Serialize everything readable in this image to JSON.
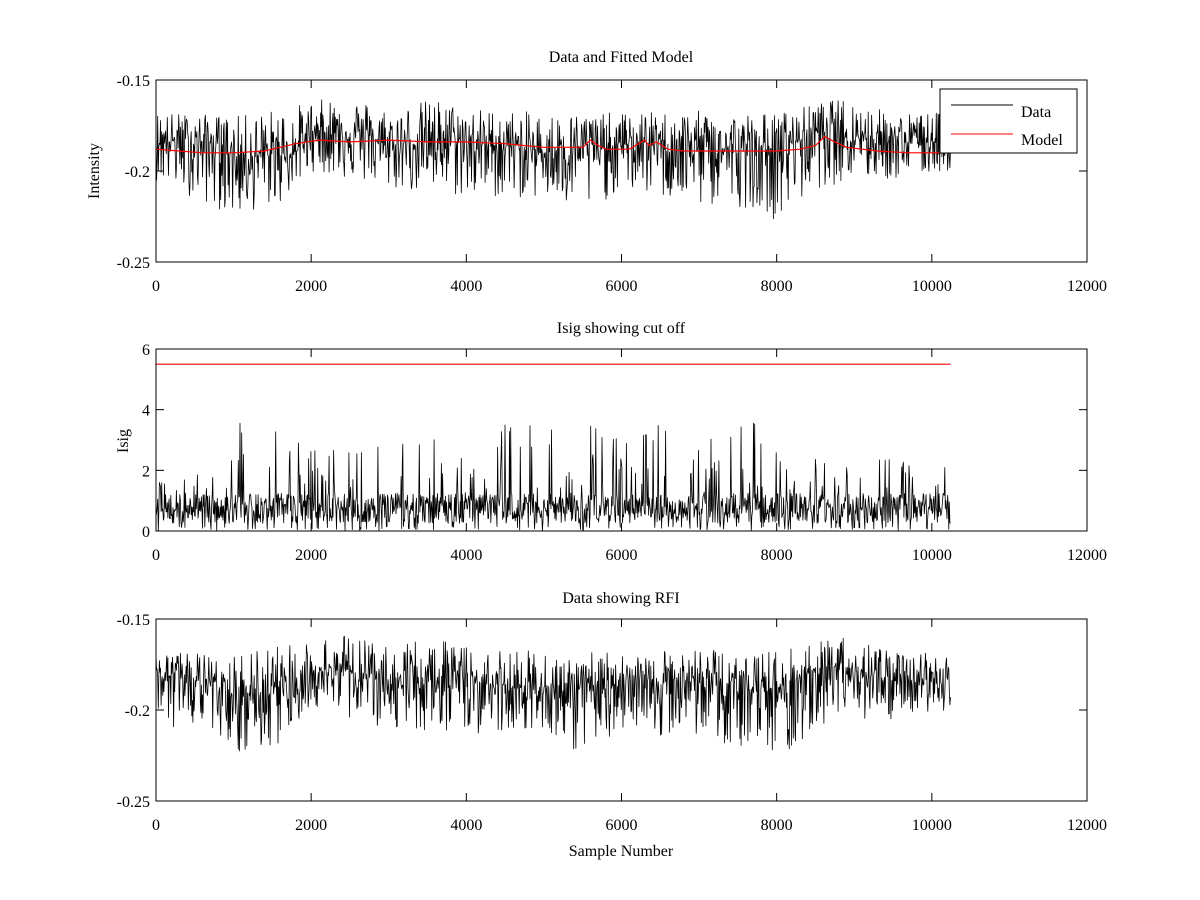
{
  "chart_data": [
    {
      "id": "top",
      "type": "line",
      "title": "Data and Fitted Model",
      "xlabel": "",
      "ylabel": "Intensity",
      "xlim": [
        0,
        12000
      ],
      "ylim": [
        -0.25,
        -0.15
      ],
      "y_reversed": true,
      "xticks": [
        "0",
        "2000",
        "4000",
        "6000",
        "8000",
        "10000",
        "12000"
      ],
      "yticks": [
        "-0.15",
        "-0.2",
        "-0.25"
      ],
      "legend": {
        "position": "top-right",
        "entries": [
          "Data",
          "Model"
        ]
      },
      "series": [
        {
          "name": "Data",
          "color": "#000000",
          "style": "noise",
          "x_range": [
            0,
            10240
          ],
          "center": {
            "x": [
              0,
              900,
              1000,
              1800,
              2000,
              2800,
              2900,
              3700,
              3800,
              4000,
              4500,
              5000,
              5600,
              5700,
              6300,
              6400,
              7000,
              7500,
              8000,
              8500,
              8700,
              9000,
              9500,
              10240
            ],
            "y": [
              -0.183,
              -0.185,
              -0.193,
              -0.19,
              -0.178,
              -0.18,
              -0.188,
              -0.182,
              -0.183,
              -0.185,
              -0.186,
              -0.19,
              -0.185,
              -0.188,
              -0.184,
              -0.186,
              -0.185,
              -0.19,
              -0.188,
              -0.178,
              -0.176,
              -0.18,
              -0.184,
              -0.183
            ]
          },
          "envelope_upper": {
            "x": [
              0,
              1000,
              2000,
              2400,
              3000,
              3600,
              4000,
              5000,
              5500,
              6000,
              7000,
              8000,
              8600,
              8900,
              9500,
              10240
            ],
            "y": [
              -0.167,
              -0.17,
              -0.162,
              -0.158,
              -0.165,
              -0.16,
              -0.165,
              -0.168,
              -0.168,
              -0.168,
              -0.167,
              -0.168,
              -0.162,
              -0.16,
              -0.168,
              -0.168
            ]
          },
          "envelope_lower": {
            "x": [
              0,
              1000,
              1600,
              2000,
              3000,
              4000,
              5000,
              5500,
              6000,
              7000,
              7800,
              8000,
              8500,
              9000,
              9500,
              10240
            ],
            "y": [
              -0.205,
              -0.225,
              -0.218,
              -0.2,
              -0.21,
              -0.215,
              -0.215,
              -0.225,
              -0.21,
              -0.22,
              -0.22,
              -0.228,
              -0.21,
              -0.205,
              -0.205,
              -0.2
            ]
          }
        },
        {
          "name": "Model",
          "color": "#ff0000",
          "style": "line",
          "x": [
            0,
            300,
            600,
            1000,
            1400,
            1800,
            2100,
            2500,
            3000,
            3500,
            4000,
            4500,
            5000,
            5500,
            5600,
            5700,
            5800,
            6100,
            6300,
            6350,
            6450,
            6600,
            6800,
            7200,
            7600,
            8000,
            8300,
            8500,
            8620,
            8700,
            8900,
            9300,
            9700,
            10240
          ],
          "y": [
            -0.188,
            -0.189,
            -0.19,
            -0.19,
            -0.189,
            -0.185,
            -0.183,
            -0.184,
            -0.183,
            -0.184,
            -0.184,
            -0.185,
            -0.187,
            -0.187,
            -0.183,
            -0.186,
            -0.188,
            -0.188,
            -0.183,
            -0.186,
            -0.184,
            -0.188,
            -0.189,
            -0.189,
            -0.189,
            -0.189,
            -0.188,
            -0.186,
            -0.181,
            -0.183,
            -0.187,
            -0.189,
            -0.19,
            -0.19
          ]
        }
      ]
    },
    {
      "id": "middle",
      "type": "line",
      "title": "Isig showing cut off",
      "xlabel": "",
      "ylabel": "Isig",
      "xlim": [
        0,
        12000
      ],
      "ylim": [
        0,
        6
      ],
      "xticks": [
        "0",
        "2000",
        "4000",
        "6000",
        "8000",
        "10000",
        "12000"
      ],
      "yticks": [
        "0",
        "2",
        "4",
        "6"
      ],
      "series": [
        {
          "name": "",
          "color": "#000000",
          "style": "noise",
          "x_range": [
            0,
            10240
          ],
          "center": {
            "x": [
              0,
              10240
            ],
            "y": [
              0.7,
              0.7
            ]
          },
          "envelope_upper": {
            "x": [
              0,
              900,
              1000,
              1700,
              2000,
              3000,
              3800,
              4500,
              5000,
              5500,
              6000,
              6400,
              7000,
              7600,
              7900,
              8100,
              9000,
              9500,
              10240
            ],
            "y": [
              1.8,
              2.0,
              3.8,
              3.5,
              2.8,
              2.8,
              3.2,
              3.6,
              3.5,
              4.1,
              3.2,
              3.7,
              2.8,
              3.8,
              4.1,
              2.5,
              2.4,
              2.5,
              2.3
            ]
          },
          "envelope_lower": {
            "x": [
              0,
              10240
            ],
            "y": [
              0,
              0
            ]
          }
        },
        {
          "name": "",
          "color": "#ff0000",
          "style": "line",
          "x": [
            0,
            10240
          ],
          "y": [
            5.5,
            5.5
          ]
        }
      ]
    },
    {
      "id": "bottom",
      "type": "line",
      "title": "Data showing RFI",
      "xlabel": "Sample Number",
      "ylabel": "",
      "xlim": [
        0,
        12000
      ],
      "ylim": [
        -0.25,
        -0.15
      ],
      "y_reversed": true,
      "xticks": [
        "0",
        "2000",
        "4000",
        "6000",
        "8000",
        "10000",
        "12000"
      ],
      "yticks": [
        "-0.15",
        "-0.2",
        "-0.25"
      ],
      "series": [
        {
          "name": "",
          "color": "#000000",
          "style": "noise",
          "x_range": [
            0,
            10240
          ],
          "center": {
            "x": [
              0,
              900,
              1000,
              1800,
              2000,
              2800,
              2900,
              3700,
              3800,
              4000,
              4500,
              5000,
              5600,
              5700,
              6300,
              6400,
              7000,
              7500,
              8000,
              8500,
              8700,
              9000,
              9500,
              10240
            ],
            "y": [
              -0.183,
              -0.185,
              -0.193,
              -0.19,
              -0.178,
              -0.18,
              -0.188,
              -0.182,
              -0.183,
              -0.185,
              -0.186,
              -0.19,
              -0.185,
              -0.188,
              -0.184,
              -0.186,
              -0.185,
              -0.19,
              -0.188,
              -0.178,
              -0.176,
              -0.18,
              -0.184,
              -0.183
            ]
          },
          "envelope_upper": {
            "x": [
              0,
              1000,
              2000,
              2400,
              3000,
              3600,
              4000,
              5000,
              5500,
              6000,
              7000,
              8000,
              8600,
              8900,
              9500,
              10240
            ],
            "y": [
              -0.167,
              -0.17,
              -0.162,
              -0.158,
              -0.165,
              -0.16,
              -0.165,
              -0.168,
              -0.168,
              -0.168,
              -0.167,
              -0.168,
              -0.162,
              -0.16,
              -0.168,
              -0.168
            ]
          },
          "envelope_lower": {
            "x": [
              0,
              1000,
              1600,
              2000,
              3000,
              4000,
              5000,
              5500,
              6000,
              7000,
              7800,
              8000,
              8500,
              9000,
              9500,
              10240
            ],
            "y": [
              -0.205,
              -0.225,
              -0.218,
              -0.2,
              -0.21,
              -0.215,
              -0.215,
              -0.225,
              -0.21,
              -0.22,
              -0.22,
              -0.228,
              -0.21,
              -0.205,
              -0.205,
              -0.2
            ]
          }
        }
      ]
    }
  ]
}
